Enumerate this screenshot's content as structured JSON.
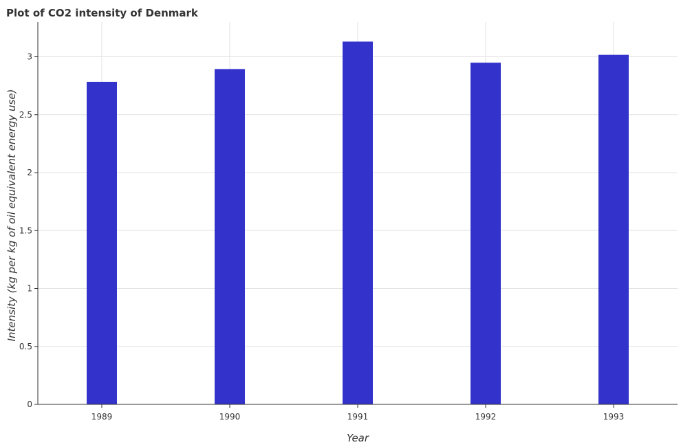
{
  "chart_data": {
    "type": "bar",
    "title": "Plot of CO2 intensity of Denmark",
    "xlabel": "Year",
    "ylabel": "Intensity (kg per kg of oil equivalent energy use)",
    "categories": [
      "1989",
      "1990",
      "1991",
      "1992",
      "1993"
    ],
    "values": [
      2.784,
      2.894,
      3.131,
      2.949,
      3.017
    ],
    "ylim": [
      0,
      3.3
    ],
    "yticks": [
      0,
      0.5,
      1,
      1.5,
      2,
      2.5,
      3
    ],
    "ytick_labels": [
      "0",
      "0.5",
      "1",
      "1.5",
      "2",
      "2.5",
      "3"
    ],
    "grid": true,
    "bar_color": "#3333cc"
  }
}
